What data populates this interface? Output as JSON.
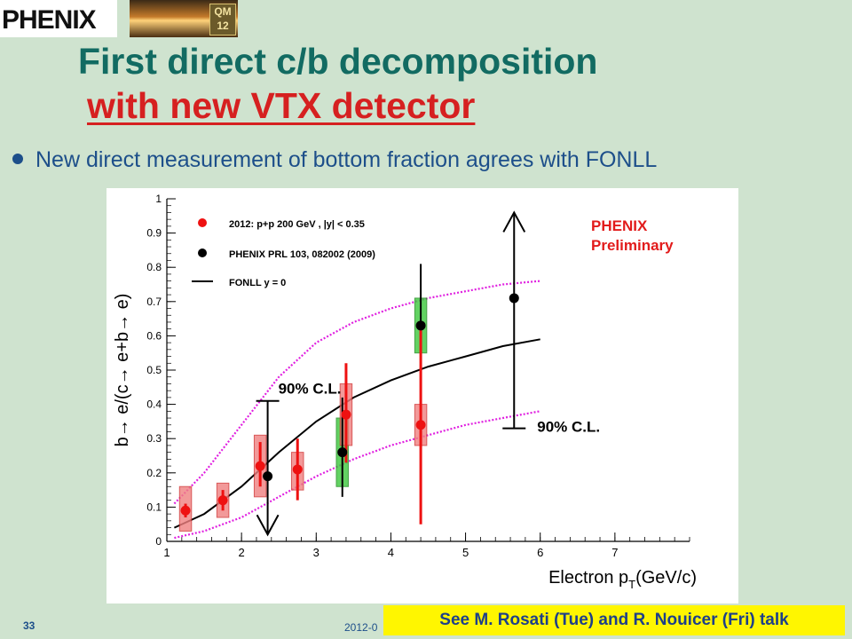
{
  "header": {
    "logo_text": "PHENIX",
    "badge_text": "QM 12",
    "title_line1": "First direct c/b decomposition",
    "title_line2": "with new VTX detector"
  },
  "bullet_text": "New direct measurement of bottom fraction agrees with FONLL",
  "footer": {
    "slide_number": "33",
    "date_text": "2012-0",
    "talk_note": "See M. Rosati (Tue) and R. Nouicer (Fri) talk"
  },
  "colors": {
    "title": "#126b62",
    "subtitle": "#d62020",
    "bullet": "#1d4f8a",
    "vtx_points": "#ee1111",
    "vtx_box": "#f08080",
    "prl_box": "#3cc83c",
    "fonll_band": "#e020e0",
    "highlight": "#fff600"
  },
  "chart_data": {
    "type": "scatter",
    "xlabel": "Electron p",
    "xlabel_sub": "T",
    "xlabel_unit": "(GeV/c)",
    "ylabel": "b→ e/(c→ e+b→ e)",
    "xlim": [
      1,
      8
    ],
    "ylim": [
      0,
      1
    ],
    "x_ticks": [
      1,
      2,
      3,
      4,
      5,
      6,
      7
    ],
    "y_ticks": [
      0,
      0.1,
      0.2,
      0.3,
      0.4,
      0.5,
      0.6,
      0.7,
      0.8,
      0.9,
      1
    ],
    "preliminary_line1": "PHENIX",
    "preliminary_line2": "Preliminary",
    "legend": [
      {
        "label": "2012: p+p 200 GeV  , |y| < 0.35",
        "kind": "red-dot"
      },
      {
        "label": "PHENIX PRL 103, 082002 (2009)",
        "kind": "black-dot"
      },
      {
        "label": "FONLL y = 0",
        "kind": "line"
      }
    ],
    "series": [
      {
        "name": "2012: p+p 200 GeV  , |y| < 0.35",
        "points": [
          {
            "x": 1.25,
            "y": 0.09,
            "stat_lo": 0.07,
            "stat_hi": 0.11,
            "sys_lo": 0.03,
            "sys_hi": 0.16
          },
          {
            "x": 1.75,
            "y": 0.12,
            "stat_lo": 0.09,
            "stat_hi": 0.15,
            "sys_lo": 0.07,
            "sys_hi": 0.17
          },
          {
            "x": 2.25,
            "y": 0.22,
            "stat_lo": 0.16,
            "stat_hi": 0.29,
            "sys_lo": 0.13,
            "sys_hi": 0.31
          },
          {
            "x": 2.75,
            "y": 0.21,
            "stat_lo": 0.12,
            "stat_hi": 0.3,
            "sys_lo": 0.15,
            "sys_hi": 0.26
          },
          {
            "x": 3.4,
            "y": 0.37,
            "stat_lo": 0.23,
            "stat_hi": 0.52,
            "sys_lo": 0.28,
            "sys_hi": 0.46
          },
          {
            "x": 4.4,
            "y": 0.34,
            "stat_lo": 0.05,
            "stat_hi": 0.63,
            "sys_lo": 0.28,
            "sys_hi": 0.4
          }
        ]
      },
      {
        "name": "PHENIX PRL 103, 082002 (2009)",
        "points": [
          {
            "x": 2.35,
            "y": 0.19
          },
          {
            "x": 3.35,
            "y": 0.26,
            "stat_lo": 0.13,
            "stat_hi": 0.42,
            "sys_lo": 0.16,
            "sys_hi": 0.36
          },
          {
            "x": 4.4,
            "y": 0.63,
            "stat_lo": 0.42,
            "stat_hi": 0.81,
            "sys_lo": 0.55,
            "sys_hi": 0.71
          },
          {
            "x": 5.65,
            "y": 0.71
          }
        ]
      }
    ],
    "limits": [
      {
        "x": 2.35,
        "label": "90% C.L.",
        "from": 0.41,
        "to": 0.02,
        "direction": "down"
      },
      {
        "x": 5.65,
        "label": "90% C.L.",
        "from": 0.33,
        "to": 0.96,
        "direction": "up"
      }
    ],
    "fonll_central": {
      "x": [
        1.1,
        1.5,
        2,
        2.5,
        3,
        3.5,
        4,
        4.5,
        5,
        5.5,
        6
      ],
      "y": [
        0.04,
        0.08,
        0.16,
        0.26,
        0.35,
        0.42,
        0.47,
        0.51,
        0.54,
        0.57,
        0.59
      ]
    },
    "fonll_upper": {
      "x": [
        1.1,
        1.5,
        2,
        2.5,
        3,
        3.5,
        4,
        4.5,
        5,
        5.5,
        6
      ],
      "y": [
        0.11,
        0.2,
        0.34,
        0.48,
        0.58,
        0.64,
        0.68,
        0.71,
        0.73,
        0.75,
        0.76
      ]
    },
    "fonll_lower": {
      "x": [
        1.1,
        1.5,
        2,
        2.5,
        3,
        3.5,
        4,
        4.5,
        5,
        5.5,
        6
      ],
      "y": [
        0.01,
        0.03,
        0.07,
        0.13,
        0.19,
        0.24,
        0.28,
        0.31,
        0.34,
        0.36,
        0.38
      ]
    }
  }
}
